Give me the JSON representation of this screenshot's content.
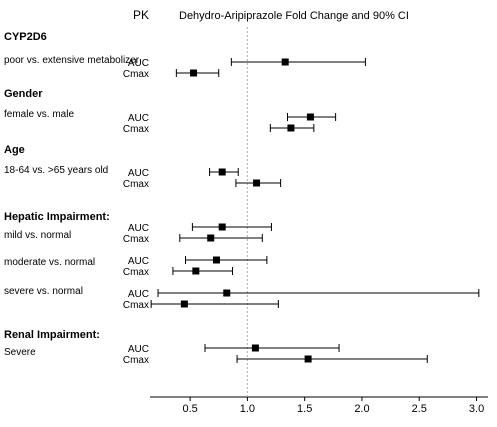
{
  "chart_data": {
    "type": "forest",
    "header_left": "PK",
    "title": "Dehydro-Aripiprazole Fold Change and 90% CI",
    "reference_line": 1.0,
    "xlim": [
      0.15,
      3.1
    ],
    "xticks": [
      0.5,
      1.0,
      1.5,
      2.0,
      2.5,
      3.0
    ],
    "xtick_labels": [
      "0.5",
      "1.0",
      "1.5",
      "2.0",
      "2.5",
      "3.0"
    ],
    "groups": [
      {
        "heading": "CYP2D6",
        "subgroups": [
          {
            "label": "poor vs. extensive metabolizer",
            "rows": [
              {
                "measure": "AUC",
                "estimate": 1.33,
                "lower": 0.86,
                "upper": 2.03
              },
              {
                "measure": "Cmax",
                "estimate": 0.53,
                "lower": 0.38,
                "upper": 0.75
              }
            ]
          }
        ]
      },
      {
        "heading": "Gender",
        "subgroups": [
          {
            "label": "female vs. male",
            "rows": [
              {
                "measure": "AUC",
                "estimate": 1.55,
                "lower": 1.35,
                "upper": 1.77
              },
              {
                "measure": "Cmax",
                "estimate": 1.38,
                "lower": 1.2,
                "upper": 1.58
              }
            ]
          }
        ]
      },
      {
        "heading": "Age",
        "subgroups": [
          {
            "label": "18-64 vs. >65 years old",
            "rows": [
              {
                "measure": "AUC",
                "estimate": 0.78,
                "lower": 0.67,
                "upper": 0.92
              },
              {
                "measure": "Cmax",
                "estimate": 1.08,
                "lower": 0.9,
                "upper": 1.29
              }
            ]
          }
        ]
      },
      {
        "heading": "Hepatic Impairment:",
        "subgroups": [
          {
            "label": "mild vs. normal",
            "rows": [
              {
                "measure": "AUC",
                "estimate": 0.78,
                "lower": 0.52,
                "upper": 1.21
              },
              {
                "measure": "Cmax",
                "estimate": 0.68,
                "lower": 0.41,
                "upper": 1.13
              }
            ]
          },
          {
            "label": "moderate vs. normal",
            "rows": [
              {
                "measure": "AUC",
                "estimate": 0.73,
                "lower": 0.46,
                "upper": 1.17
              },
              {
                "measure": "Cmax",
                "estimate": 0.55,
                "lower": 0.35,
                "upper": 0.87
              }
            ]
          },
          {
            "label": "severe vs. normal",
            "rows": [
              {
                "measure": "AUC",
                "estimate": 0.82,
                "lower": 0.22,
                "upper": 3.02
              },
              {
                "measure": "Cmax",
                "estimate": 0.45,
                "lower": 0.16,
                "upper": 1.27
              }
            ]
          }
        ]
      },
      {
        "heading": "Renal Impairment:",
        "subgroups": [
          {
            "label": "Severe",
            "rows": [
              {
                "measure": "AUC",
                "estimate": 1.07,
                "lower": 0.63,
                "upper": 1.8
              },
              {
                "measure": "Cmax",
                "estimate": 1.53,
                "lower": 0.91,
                "upper": 2.57
              }
            ]
          }
        ]
      }
    ],
    "grid": false,
    "legend": "none"
  }
}
